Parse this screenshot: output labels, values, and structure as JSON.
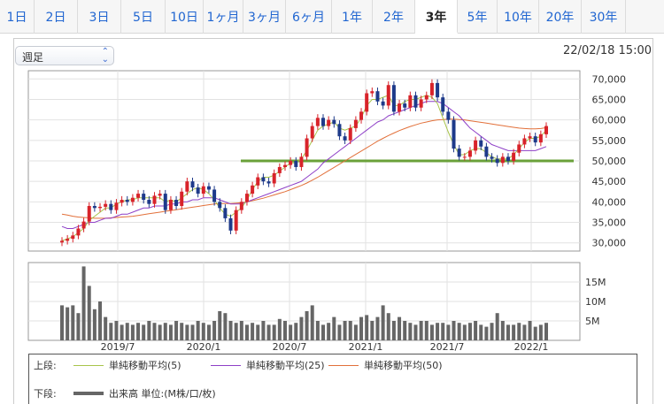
{
  "tabs": [
    "1日",
    "2日",
    "3日",
    "5日",
    "10日",
    "1ヶ月",
    "3ヶ月",
    "6ヶ月",
    "1年",
    "2年",
    "3年",
    "5年",
    "10年",
    "20年",
    "30年"
  ],
  "active_tab": "3年",
  "period_select": {
    "value": "週足"
  },
  "timestamp": "22/02/18 15:00",
  "colors": {
    "ma5": "#a8c44a",
    "ma25": "#8e3fc7",
    "ma50": "#e2703a",
    "candle_up": "#d8232a",
    "candle_down": "#1e3a8a",
    "volume": "#666666",
    "support": "#6aa139"
  },
  "legend": {
    "upper_label": "上段:",
    "lower_label": "下段:",
    "ma5": "単純移動平均(5)",
    "ma25": "単純移動平均(25)",
    "ma50": "単純移動平均(50)",
    "volume": "出来高 単位:(M株/口/枚)"
  },
  "chart_data": [
    {
      "type": "candlestick",
      "x_tick_labels": [
        "2019/7",
        "2020/1",
        "2020/7",
        "2021/1",
        "2021/7",
        "2022/1"
      ],
      "y_tick_labels": [
        "30,000",
        "35,000",
        "40,000",
        "45,000",
        "50,000",
        "55,000",
        "60,000",
        "65,000",
        "70,000"
      ],
      "ylim": [
        28000,
        72000
      ],
      "support_line": 50000,
      "close": [
        30500,
        31000,
        31800,
        33500,
        35200,
        39000,
        38500,
        38800,
        39500,
        38000,
        39800,
        40500,
        40000,
        41000,
        42000,
        40500,
        39500,
        41500,
        42000,
        38000,
        40500,
        39000,
        42500,
        45000,
        43500,
        42000,
        43800,
        43000,
        40000,
        38500,
        36000,
        33000,
        38000,
        40000,
        42000,
        44000,
        46000,
        45000,
        44500,
        47000,
        48500,
        49000,
        50000,
        48500,
        51000,
        55500,
        58500,
        60500,
        58500,
        60000,
        59000,
        56000,
        55000,
        58000,
        60000,
        62000,
        66500,
        67000,
        64500,
        63500,
        68500,
        62000,
        64000,
        63000,
        66000,
        63000,
        65000,
        66000,
        69000,
        65500,
        62000,
        60000,
        53000,
        51000,
        51000,
        52500,
        55000,
        53500,
        51000,
        50500,
        49500,
        51000,
        50000,
        52000,
        54000,
        55500,
        56000,
        54500,
        56500,
        58500
      ],
      "ma5": [
        30500,
        31000,
        31500,
        32500,
        33500,
        35500,
        36500,
        37500,
        38500,
        38500,
        39500,
        40000,
        40500,
        40500,
        41000,
        41000,
        41000,
        41000,
        41000,
        40000,
        40500,
        40000,
        41000,
        42000,
        43000,
        43500,
        43000,
        42000,
        40500,
        38500,
        37000,
        36500,
        37500,
        38500,
        40500,
        43000,
        45000,
        46000,
        46000,
        46500,
        47500,
        48500,
        49500,
        49500,
        50500,
        52500,
        55000,
        57500,
        58500,
        59000,
        59500,
        58000,
        57500,
        58000,
        58500,
        60500,
        63500,
        65000,
        65000,
        65500,
        66000,
        63500,
        63500,
        64500,
        65000,
        65000,
        65500,
        66000,
        65500,
        64000,
        60500,
        57000,
        54000,
        51500,
        51500,
        52500,
        53000,
        53000,
        52000,
        51000,
        50500,
        50500,
        50500,
        51500,
        53000,
        54500,
        55500,
        55500,
        56000,
        57500
      ],
      "ma25": [
        34000,
        33500,
        33500,
        34000,
        34500,
        35000,
        35000,
        35500,
        36000,
        36000,
        36500,
        37000,
        37000,
        37500,
        38000,
        38500,
        38500,
        39000,
        39000,
        39000,
        39500,
        39500,
        40000,
        40000,
        40500,
        40500,
        41000,
        41000,
        41000,
        40500,
        40000,
        39500,
        39500,
        39500,
        40000,
        40500,
        41000,
        41500,
        42000,
        42500,
        43000,
        43500,
        44000,
        44500,
        45000,
        46000,
        47000,
        48000,
        49500,
        50500,
        51500,
        52500,
        53500,
        54500,
        55500,
        56500,
        57500,
        58500,
        59500,
        60000,
        61000,
        61500,
        62000,
        62500,
        63000,
        63500,
        64000,
        64500,
        64500,
        64500,
        64000,
        63000,
        62000,
        61000,
        59500,
        58000,
        57000,
        56000,
        55000,
        54000,
        53500,
        53000,
        52500,
        52500,
        52500,
        52500,
        52500,
        52500,
        53000,
        53500
      ],
      "ma50": [
        37000,
        36800,
        36500,
        36300,
        36200,
        36100,
        36000,
        36000,
        36000,
        36100,
        36200,
        36300,
        36400,
        36500,
        36700,
        36900,
        37100,
        37300,
        37500,
        37700,
        37900,
        38100,
        38300,
        38500,
        38700,
        38900,
        39100,
        39300,
        39500,
        39600,
        39600,
        39600,
        39700,
        39800,
        40000,
        40300,
        40600,
        40900,
        41300,
        41700,
        42100,
        42500,
        43000,
        43500,
        44000,
        44600,
        45300,
        46000,
        46800,
        47600,
        48400,
        49200,
        50000,
        50800,
        51600,
        52400,
        53200,
        54000,
        54800,
        55500,
        56200,
        56800,
        57400,
        57900,
        58400,
        58800,
        59200,
        59500,
        59800,
        60000,
        60100,
        60200,
        60200,
        60100,
        60000,
        59800,
        59600,
        59400,
        59200,
        59000,
        58800,
        58600,
        58400,
        58200,
        58000,
        57900,
        57800,
        57800,
        57900,
        58100
      ],
      "volume_ylim": [
        0,
        20
      ],
      "volume_tick_labels": [
        "5M",
        "10M",
        "15M"
      ]
    }
  ]
}
